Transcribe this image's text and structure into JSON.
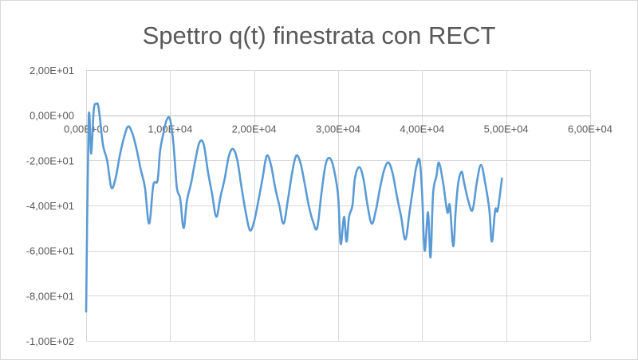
{
  "chart_data": {
    "type": "line",
    "title": "Spettro q(t) finestrata con RECT",
    "xlabel": "",
    "ylabel": "",
    "xlim": [
      0,
      60000
    ],
    "ylim": [
      -100,
      20
    ],
    "x_ticks": [
      0,
      10000,
      20000,
      30000,
      40000,
      50000,
      60000
    ],
    "x_tick_labels": [
      "0,00E+00",
      "1,00E+04",
      "2,00E+04",
      "3,00E+04",
      "4,00E+04",
      "5,00E+04",
      "6,00E+04"
    ],
    "y_ticks": [
      20,
      0,
      -20,
      -40,
      -60,
      -80,
      -100
    ],
    "y_tick_labels": [
      "2,00E+01",
      "0,00E+00",
      "-2,00E+01",
      "-4,00E+01",
      "-6,00E+01",
      "-8,00E+01",
      "-1,00E+02"
    ],
    "grid": true,
    "legend": "none",
    "series": [
      {
        "color": "#5b9bd5",
        "x": [
          0,
          300,
          600,
          900,
          1200,
          1500,
          2000,
          2500,
          3000,
          3500,
          4000,
          4500,
          5000,
          5500,
          6000,
          6500,
          7000,
          7500,
          8000,
          8500,
          8800,
          9200,
          9600,
          10000,
          10400,
          10800,
          11200,
          11600,
          12000,
          12500,
          13000,
          13500,
          14000,
          14500,
          15000,
          15500,
          16000,
          16500,
          17000,
          17500,
          18000,
          18500,
          19000,
          19500,
          20000,
          20500,
          21000,
          21500,
          22000,
          22500,
          23000,
          23500,
          24000,
          24500,
          25000,
          25500,
          26000,
          26500,
          27000,
          27500,
          28000,
          28500,
          29000,
          29500,
          30000,
          30300,
          30700,
          31000,
          31300,
          31700,
          32000,
          32500,
          33000,
          33500,
          34000,
          34500,
          35000,
          35500,
          36000,
          36500,
          37000,
          37500,
          38000,
          38500,
          39000,
          39300,
          39700,
          40000,
          40300,
          40700,
          41000,
          41300,
          41700,
          42000,
          42500,
          43000,
          43300,
          43700,
          44000,
          44300,
          44700,
          45000,
          45500,
          46000,
          46500,
          47000,
          47500,
          48000,
          48300,
          48700,
          49000,
          49500
        ],
        "y": [
          -87,
          -2,
          -17,
          2,
          5,
          3,
          -13,
          -20,
          -32,
          -28,
          -18,
          -10,
          -5,
          -8,
          -15,
          -24,
          -32,
          -48,
          -31,
          -29,
          -16,
          -8,
          -2,
          -2,
          -13,
          -32,
          -37,
          -50,
          -38,
          -30,
          -20,
          -12,
          -13,
          -25,
          -35,
          -45,
          -36,
          -28,
          -18,
          -15,
          -20,
          -32,
          -43,
          -51,
          -47,
          -38,
          -28,
          -18,
          -22,
          -32,
          -40,
          -48,
          -38,
          -26,
          -18,
          -21,
          -30,
          -40,
          -47,
          -50,
          -35,
          -22,
          -19,
          -24,
          -36,
          -57,
          -45,
          -56,
          -45,
          -40,
          -28,
          -23,
          -28,
          -40,
          -48,
          -42,
          -32,
          -24,
          -21,
          -26,
          -36,
          -45,
          -55,
          -43,
          -30,
          -23,
          -20,
          -35,
          -60,
          -43,
          -63,
          -35,
          -27,
          -21,
          -30,
          -43,
          -40,
          -58,
          -42,
          -30,
          -25,
          -30,
          -38,
          -42,
          -30,
          -22,
          -30,
          -42,
          -56,
          -42,
          -42,
          -28
        ]
      }
    ]
  }
}
